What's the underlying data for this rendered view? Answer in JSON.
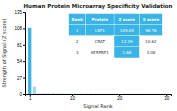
{
  "chart_data": {
    "type": "bar",
    "title": "Human Protein Microarray Specificity Validation",
    "xlabel": "Signal Rank",
    "ylabel": "Strength of Signal (Z score)",
    "x": [
      1,
      2,
      3,
      4,
      5,
      6,
      7,
      8,
      9,
      10,
      11,
      12,
      13,
      14,
      15,
      16,
      17,
      18,
      19,
      20,
      21,
      22,
      23,
      24,
      25,
      26,
      27,
      28,
      29,
      30
    ],
    "values": [
      109.05,
      12.29,
      1.68,
      1.5,
      1.4,
      1.3,
      1.2,
      1.1,
      1.0,
      0.9,
      0.85,
      0.8,
      0.78,
      0.75,
      0.72,
      0.7,
      0.68,
      0.65,
      0.63,
      0.6,
      0.58,
      0.55,
      0.52,
      0.5,
      0.48,
      0.45,
      0.43,
      0.4,
      0.38,
      0.35
    ],
    "colors": [
      "#3ab4e6",
      "#a8d8ee",
      "#c8e8f5",
      "#c8e8f5",
      "#c8e8f5",
      "#c8e8f5",
      "#c8e8f5",
      "#c8e8f5",
      "#c8e8f5",
      "#c8e8f5",
      "#c8e8f5",
      "#c8e8f5",
      "#c8e8f5",
      "#c8e8f5",
      "#c8e8f5",
      "#c8e8f5",
      "#c8e8f5",
      "#c8e8f5",
      "#c8e8f5",
      "#c8e8f5",
      "#c8e8f5",
      "#c8e8f5",
      "#c8e8f5",
      "#c8e8f5",
      "#c8e8f5",
      "#c8e8f5",
      "#c8e8f5",
      "#c8e8f5",
      "#c8e8f5",
      "#c8e8f5"
    ],
    "xlim": [
      0.0,
      31
    ],
    "ylim": [
      0,
      135
    ],
    "xticks": [
      1,
      10,
      20,
      30
    ],
    "yticks": [
      0,
      27,
      54,
      81,
      108,
      135
    ],
    "table": {
      "headers": [
        "Rank",
        "Protein",
        "Z score",
        "S score"
      ],
      "rows": [
        [
          "1",
          "LSP1",
          "109.05",
          "96.76"
        ],
        [
          "2",
          "CRAT",
          "12.29",
          "10.62"
        ],
        [
          "3",
          "SERPBP1",
          "1.68",
          "3.08"
        ]
      ]
    }
  }
}
